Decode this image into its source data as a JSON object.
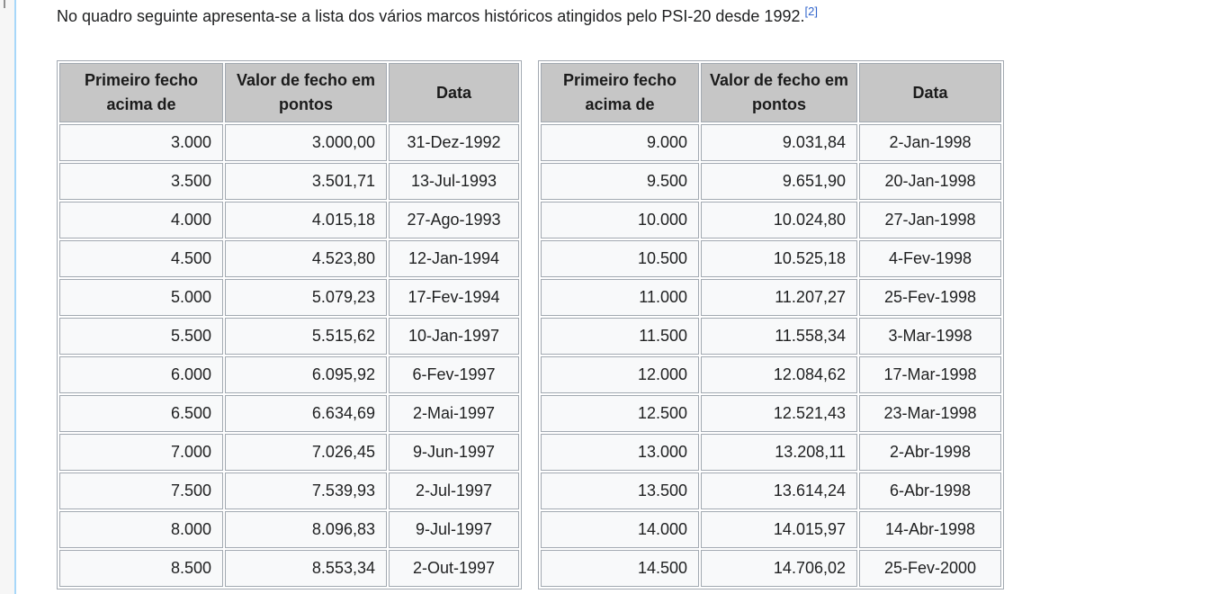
{
  "page": {
    "intro_text": "No quadro seguinte apresenta-se a lista dos vários marcos históricos atingidos pelo PSI-20 desde 1992.",
    "citation_label": "[2]"
  },
  "table_headers": {
    "col1": "Primeiro fecho acima de",
    "col2": "Valor de fecho em pontos",
    "col3": "Data"
  },
  "tables": [
    {
      "name": "milestones-left",
      "rows": [
        [
          "3.000",
          "3.000,00",
          "31-Dez-1992"
        ],
        [
          "3.500",
          "3.501,71",
          "13-Jul-1993"
        ],
        [
          "4.000",
          "4.015,18",
          "27-Ago-1993"
        ],
        [
          "4.500",
          "4.523,80",
          "12-Jan-1994"
        ],
        [
          "5.000",
          "5.079,23",
          "17-Fev-1994"
        ],
        [
          "5.500",
          "5.515,62",
          "10-Jan-1997"
        ],
        [
          "6.000",
          "6.095,92",
          "6-Fev-1997"
        ],
        [
          "6.500",
          "6.634,69",
          "2-Mai-1997"
        ],
        [
          "7.000",
          "7.026,45",
          "9-Jun-1997"
        ],
        [
          "7.500",
          "7.539,93",
          "2-Jul-1997"
        ],
        [
          "8.000",
          "8.096,83",
          "9-Jul-1997"
        ],
        [
          "8.500",
          "8.553,34",
          "2-Out-1997"
        ]
      ]
    },
    {
      "name": "milestones-right",
      "rows": [
        [
          "9.000",
          "9.031,84",
          "2-Jan-1998"
        ],
        [
          "9.500",
          "9.651,90",
          "20-Jan-1998"
        ],
        [
          "10.000",
          "10.024,80",
          "27-Jan-1998"
        ],
        [
          "10.500",
          "10.525,18",
          "4-Fev-1998"
        ],
        [
          "11.000",
          "11.207,27",
          "25-Fev-1998"
        ],
        [
          "11.500",
          "11.558,34",
          "3-Mar-1998"
        ],
        [
          "12.000",
          "12.084,62",
          "17-Mar-1998"
        ],
        [
          "12.500",
          "12.521,43",
          "23-Mar-1998"
        ],
        [
          "13.000",
          "13.208,11",
          "2-Abr-1998"
        ],
        [
          "13.500",
          "13.614,24",
          "6-Abr-1998"
        ],
        [
          "14.000",
          "14.015,97",
          "14-Abr-1998"
        ],
        [
          "14.500",
          "14.706,02",
          "25-Fev-2000"
        ]
      ]
    }
  ],
  "colors": {
    "header_bg": "#c6c6c6",
    "cell_bg": "#f8f9fa",
    "table_border": "#a2a9b1",
    "link": "#3366cc",
    "content_border_blue": "#a7d7f9",
    "gutter_bg": "#f6f6f6"
  }
}
